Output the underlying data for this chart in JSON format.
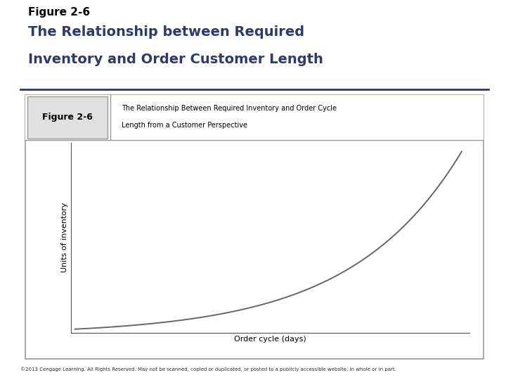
{
  "fig_label": "Figure 2-6",
  "main_title_line1": "The Relationship between Required",
  "main_title_line2": "Inventory and Order Customer Length",
  "main_title_color": "#2E3A6E",
  "fig_label_color": "#000000",
  "box_label": "Figure 2-6",
  "box_subtitle_line1": "The Relationship Between Required Inventory and Order Cycle",
  "box_subtitle_line2": "Length from a Customer Perspective",
  "xlabel": "Order cycle (days)",
  "ylabel": "Units of inventory",
  "curve_color": "#666666",
  "box_border_color": "#999999",
  "header_bg_color": "#e0e0e0",
  "footer_text": "©2013 Cengage Learning. All Rights Reserved. May not be scanned, copied or duplicated, or posted to a publicly accessible website, in whole or in part.",
  "background_color": "#ffffff",
  "separator_color": "#2E3A6E",
  "title_fontsize": 14,
  "fig_label_fontsize": 11
}
